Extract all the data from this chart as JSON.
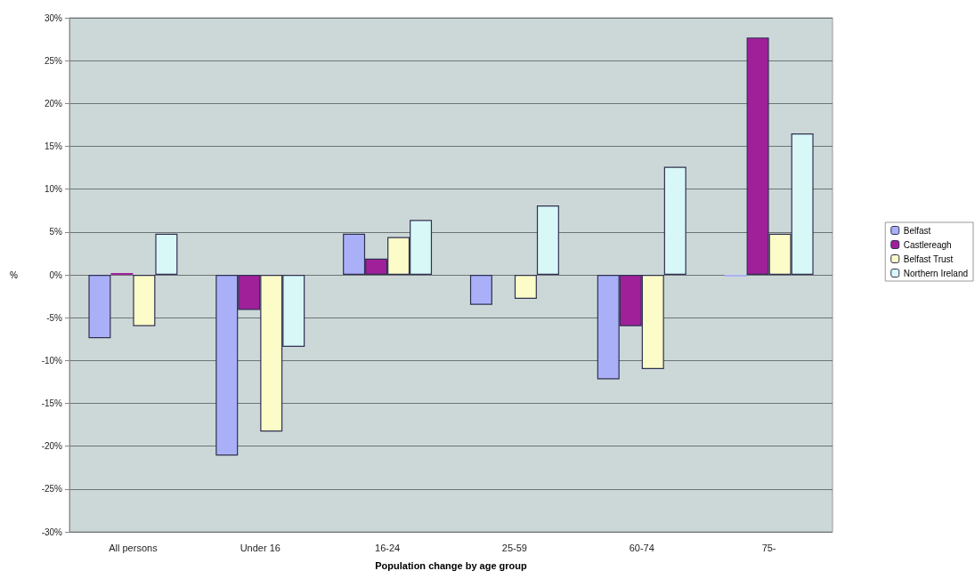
{
  "chart_data": {
    "type": "bar",
    "xlabel": "Population change by age group",
    "ylabel": "%",
    "categories": [
      "All persons",
      "Under 16",
      "16-24",
      "25-59",
      "60-74",
      "75-"
    ],
    "series": [
      {
        "name": "Belfast",
        "color": "#aab0f8",
        "values": [
          -7.4,
          -21.1,
          4.8,
          -3.5,
          -12.2,
          -0.2
        ]
      },
      {
        "name": "Castlereagh",
        "color": "#a0209a",
        "values": [
          0.2,
          -4.1,
          1.9,
          null,
          -6.0,
          27.7
        ]
      },
      {
        "name": "Belfast Trust",
        "color": "#fcfcc8",
        "values": [
          -6.0,
          -18.3,
          4.4,
          -2.8,
          -11.0,
          4.8
        ]
      },
      {
        "name": "Northern Ireland",
        "color": "#d8f8f8",
        "values": [
          4.8,
          -8.4,
          6.4,
          8.1,
          12.6,
          16.5
        ]
      }
    ],
    "ylim": [
      -30,
      30
    ],
    "yticks": [
      {
        "value": -30,
        "label": "-30%"
      },
      {
        "value": -25,
        "label": "-25%"
      },
      {
        "value": -20,
        "label": "-20%"
      },
      {
        "value": -15,
        "label": "-15%"
      },
      {
        "value": -10,
        "label": "-10%"
      },
      {
        "value": -5,
        "label": "-5%"
      },
      {
        "value": 0,
        "label": "0%"
      },
      {
        "value": 5,
        "label": "5%"
      },
      {
        "value": 10,
        "label": "10%"
      },
      {
        "value": 15,
        "label": "15%"
      },
      {
        "value": 20,
        "label": "20%"
      },
      {
        "value": 25,
        "label": "25%"
      },
      {
        "value": 30,
        "label": "30%"
      }
    ],
    "grid": "y",
    "legend": "right"
  }
}
